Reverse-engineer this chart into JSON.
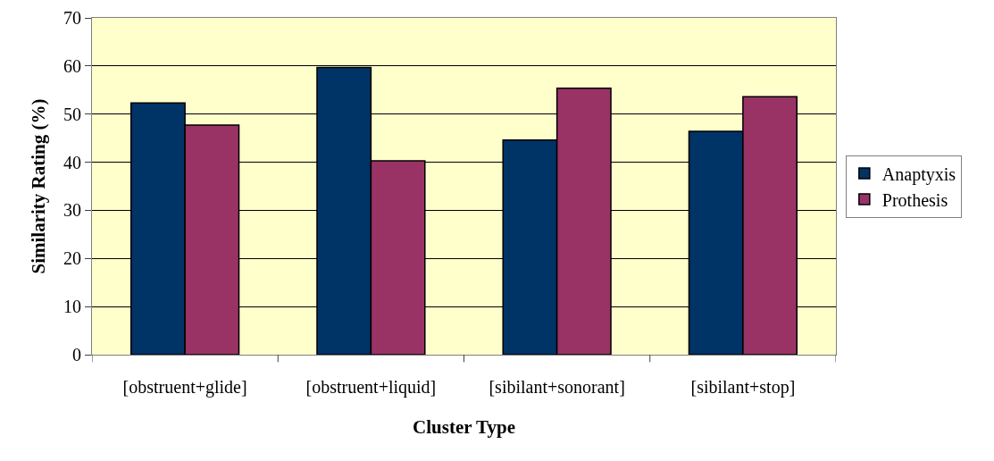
{
  "chart_data": {
    "type": "bar",
    "xlabel": "Cluster Type",
    "ylabel": "Similarity Rating (%)",
    "categories": [
      "[obstruent+glide]",
      "[obstruent+liquid]",
      "[sibilant+sonorant]",
      "[sibilant+stop]"
    ],
    "series": [
      {
        "name": "Anaptyxis",
        "color": "#003366",
        "values": [
          52.3,
          59.7,
          44.6,
          46.4
        ]
      },
      {
        "name": "Prothesis",
        "color": "#993366",
        "values": [
          47.7,
          40.3,
          55.4,
          53.6
        ]
      }
    ],
    "ylim": [
      0,
      70
    ],
    "yticks": [
      0,
      10,
      20,
      30,
      40,
      50,
      60,
      70
    ],
    "grid": "y",
    "legend": "right"
  }
}
